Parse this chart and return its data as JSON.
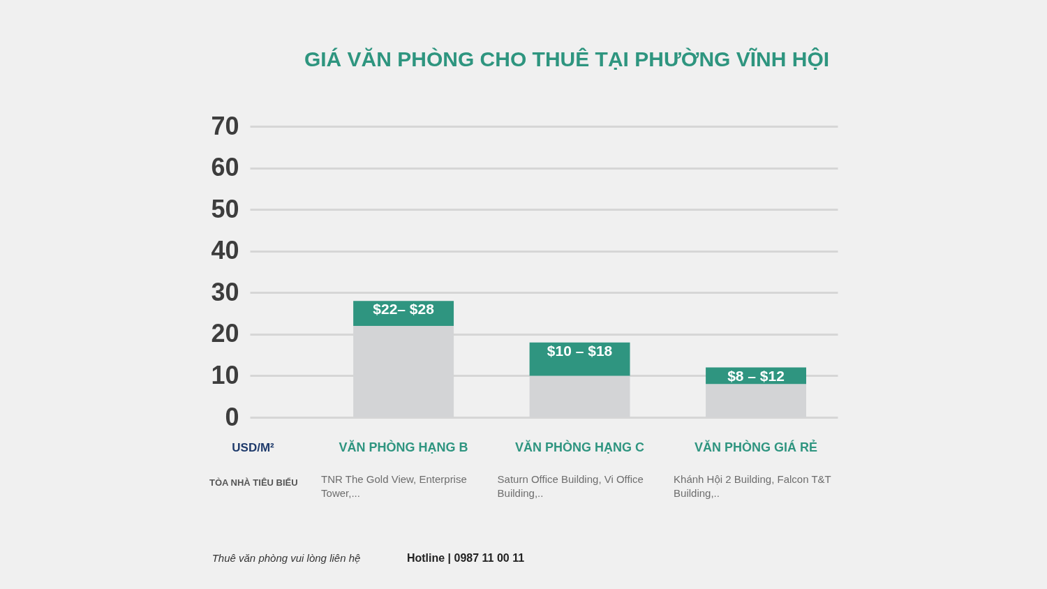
{
  "chart_data": {
    "type": "bar",
    "title": "GIÁ VĂN PHÒNG CHO THUÊ TẠI PHƯỜNG VĨNH HỘI",
    "ylabel": "USD/M²",
    "categories": [
      "VĂN PHÒNG HẠNG B",
      "VĂN PHÒNG HẠNG C",
      "VĂN PHÒNG GIÁ RẺ"
    ],
    "stacked": true,
    "series": [
      {
        "color": "#d3d4d6",
        "values": [
          22,
          10,
          8
        ]
      },
      {
        "color": "#2f9580",
        "values": [
          6,
          8,
          4
        ]
      }
    ],
    "ylim": [
      0,
      70
    ],
    "yticks": [
      0,
      10,
      20,
      30,
      40,
      50,
      60,
      70
    ],
    "grid": "y",
    "annotations": [
      {
        "text": "$22– $28",
        "x": "VĂN PHÒNG HẠNG B",
        "y": 28
      },
      {
        "text": "$10 – $18",
        "x": "VĂN PHÒNG HẠNG C",
        "y": 18
      },
      {
        "text": "$8 – $12",
        "x": "VĂN PHÒNG GIÁ RẺ",
        "y": 12
      },
      "TÒA NHÀ TIÊU BIỂU",
      "TNR The Gold View, Enterprise Tower,...",
      "Saturn Office Building, Vi Office Building,..",
      "Khánh Hội 2 Building, Falcon T&T Building,..",
      "Thuê văn phòng vui lòng liên hệ",
      "Hotline | 0987 11 00 11"
    ]
  }
}
